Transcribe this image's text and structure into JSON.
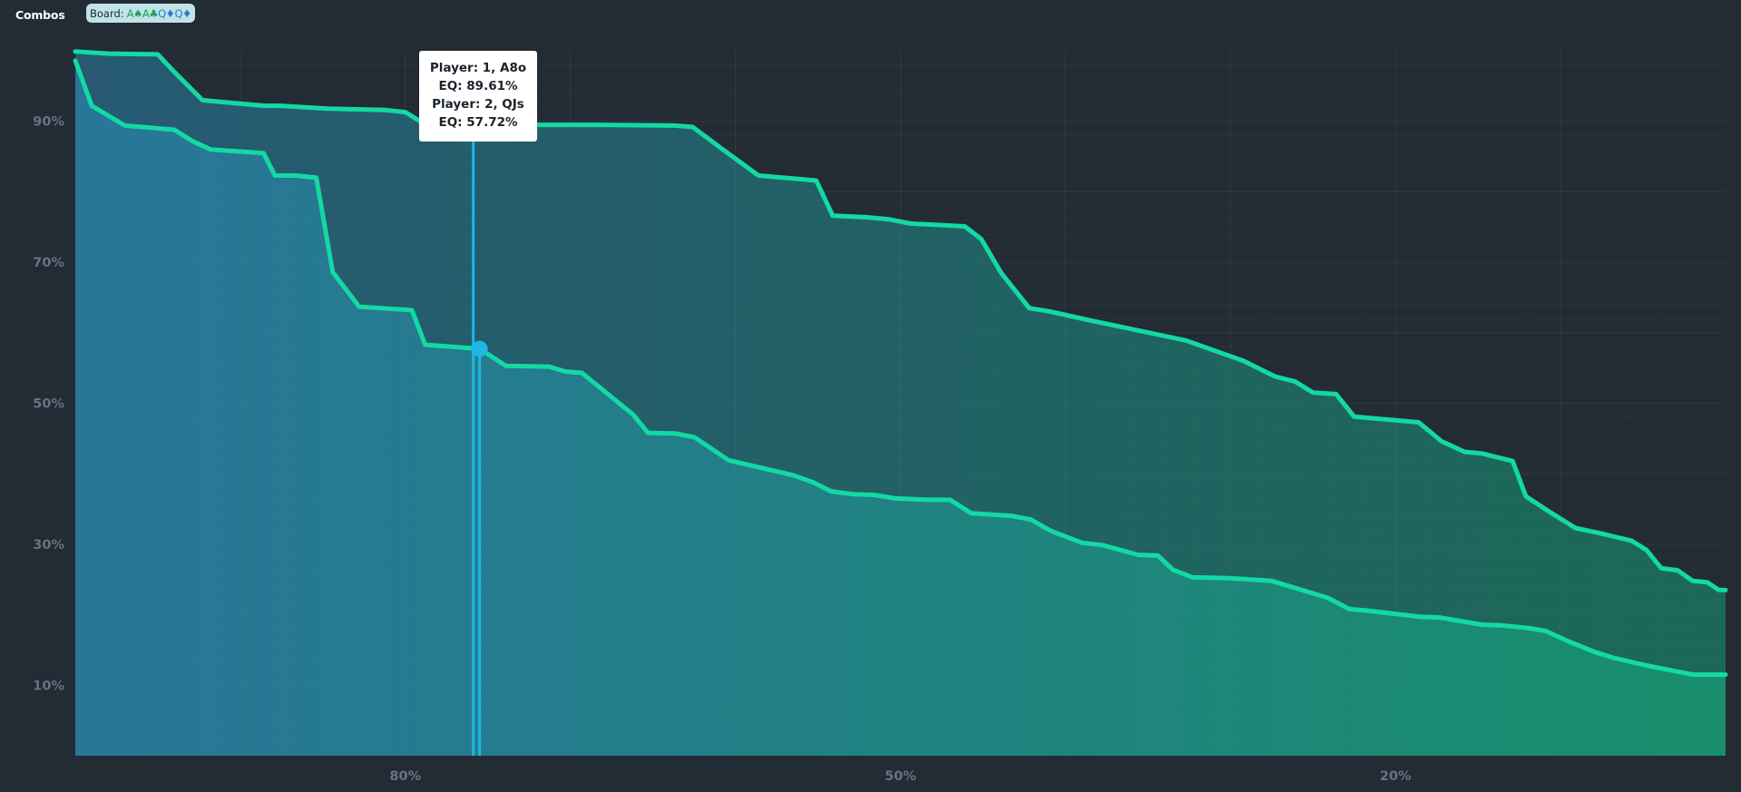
{
  "header": {
    "combos_label": "Combos",
    "board_prefix": "Board:",
    "board_cards": [
      "A♠",
      "A♣",
      "Q♦",
      "Q♦"
    ]
  },
  "tooltip": {
    "entries": [
      {
        "player": "Player: 1, A8o",
        "eq": "EQ: 89.61%"
      },
      {
        "player": "Player: 2, QJs",
        "eq": "EQ: 57.72%"
      }
    ]
  },
  "colors": {
    "background": "#232b35",
    "line_start": "#1fb6e2",
    "line_end": "#13d9a4",
    "fill_start": "#2a7fa6",
    "fill_end": "#169b72",
    "tooltip_bg": "#ffffff"
  },
  "chart_data": {
    "type": "area",
    "x_direction": "descending",
    "xlim": [
      100,
      0
    ],
    "ylim": [
      0,
      100
    ],
    "x_ticks": [
      {
        "value": 80,
        "label": "80%"
      },
      {
        "value": 50,
        "label": "50%"
      },
      {
        "value": 20,
        "label": "20%"
      }
    ],
    "y_ticks": [
      {
        "value": 90,
        "label": "90%"
      },
      {
        "value": 70,
        "label": "70%"
      },
      {
        "value": 50,
        "label": "50%"
      },
      {
        "value": 30,
        "label": "30%"
      },
      {
        "value": 10,
        "label": "10%"
      }
    ],
    "grid": true,
    "legend": "none",
    "hover": {
      "x": 75.5,
      "points": [
        89.61,
        57.72
      ]
    },
    "series": [
      {
        "points": [
          [
            100,
            99.9
          ],
          [
            98,
            99.6
          ],
          [
            95,
            99.5
          ],
          [
            94,
            97.0
          ],
          [
            92.3,
            93.0
          ],
          [
            90,
            92.5
          ],
          [
            88.5,
            92.2
          ],
          [
            87.6,
            92.2
          ],
          [
            84.7,
            91.8
          ],
          [
            81.2,
            91.6
          ],
          [
            80,
            91.3
          ],
          [
            79.1,
            90.0
          ],
          [
            78.9,
            90.0
          ],
          [
            78,
            89.8
          ],
          [
            76.4,
            89.7
          ],
          [
            75.6,
            89.6
          ],
          [
            73.6,
            89.5
          ],
          [
            68.3,
            89.5
          ],
          [
            63.7,
            89.4
          ],
          [
            62.6,
            89.2
          ],
          [
            60.7,
            85.9
          ],
          [
            58.6,
            82.3
          ],
          [
            55.1,
            81.6
          ],
          [
            54.1,
            76.6
          ],
          [
            52.1,
            76.4
          ],
          [
            50.7,
            76.1
          ],
          [
            49.4,
            75.5
          ],
          [
            46.1,
            75.1
          ],
          [
            45.1,
            73.3
          ],
          [
            43.9,
            68.5
          ],
          [
            42.2,
            63.5
          ],
          [
            40.9,
            63.0
          ],
          [
            38.6,
            61.8
          ],
          [
            32.7,
            58.9
          ],
          [
            29.2,
            56.0
          ],
          [
            27.3,
            53.8
          ],
          [
            26.1,
            53.1
          ],
          [
            25.0,
            51.5
          ],
          [
            23.6,
            51.3
          ],
          [
            22.5,
            48.1
          ],
          [
            18.6,
            47.3
          ],
          [
            17.2,
            44.6
          ],
          [
            15.8,
            43.1
          ],
          [
            14.8,
            42.9
          ],
          [
            12.9,
            41.8
          ],
          [
            12.1,
            36.8
          ],
          [
            10.8,
            34.8
          ],
          [
            9.1,
            32.3
          ],
          [
            7.5,
            31.5
          ],
          [
            5.7,
            30.5
          ],
          [
            4.8,
            29.2
          ],
          [
            3.9,
            26.6
          ],
          [
            2.9,
            26.3
          ],
          [
            2.0,
            24.8
          ],
          [
            1.1,
            24.6
          ],
          [
            0.4,
            23.5
          ],
          [
            0,
            23.5
          ]
        ]
      },
      {
        "points": [
          [
            100,
            98.6
          ],
          [
            99,
            92.2
          ],
          [
            97,
            89.4
          ],
          [
            94,
            88.8
          ],
          [
            92.9,
            87.2
          ],
          [
            91.8,
            86.0
          ],
          [
            88.6,
            85.5
          ],
          [
            87.9,
            82.3
          ],
          [
            86.6,
            82.3
          ],
          [
            85.4,
            82.0
          ],
          [
            84.4,
            68.6
          ],
          [
            82.8,
            63.7
          ],
          [
            79.6,
            63.2
          ],
          [
            78.8,
            58.3
          ],
          [
            75.5,
            57.72
          ],
          [
            73.9,
            55.3
          ],
          [
            71.3,
            55.2
          ],
          [
            70.3,
            54.5
          ],
          [
            69.3,
            54.3
          ],
          [
            66.2,
            48.4
          ],
          [
            65.3,
            45.8
          ],
          [
            63.6,
            45.7
          ],
          [
            62.5,
            45.2
          ],
          [
            60.4,
            41.9
          ],
          [
            56.5,
            39.8
          ],
          [
            55.3,
            38.8
          ],
          [
            54.2,
            37.5
          ],
          [
            52.9,
            37.1
          ],
          [
            51.6,
            37.0
          ],
          [
            50.3,
            36.5
          ],
          [
            48.3,
            36.3
          ],
          [
            47.0,
            36.3
          ],
          [
            45.7,
            34.4
          ],
          [
            43.2,
            34.0
          ],
          [
            42.1,
            33.5
          ],
          [
            40.9,
            31.9
          ],
          [
            39.0,
            30.2
          ],
          [
            37.8,
            29.9
          ],
          [
            36.7,
            29.2
          ],
          [
            35.6,
            28.5
          ],
          [
            34.4,
            28.4
          ],
          [
            33.5,
            26.4
          ],
          [
            32.3,
            25.3
          ],
          [
            30.1,
            25.2
          ],
          [
            27.5,
            24.8
          ],
          [
            24.1,
            22.4
          ],
          [
            22.8,
            20.8
          ],
          [
            21.8,
            20.6
          ],
          [
            18.5,
            19.7
          ],
          [
            17.3,
            19.6
          ],
          [
            14.8,
            18.6
          ],
          [
            13.6,
            18.5
          ],
          [
            11.9,
            18.1
          ],
          [
            10.9,
            17.7
          ],
          [
            9.5,
            16.2
          ],
          [
            7.9,
            14.7
          ],
          [
            6.8,
            13.9
          ],
          [
            4.8,
            12.8
          ],
          [
            2.0,
            11.5
          ],
          [
            0,
            11.5
          ]
        ]
      }
    ]
  }
}
